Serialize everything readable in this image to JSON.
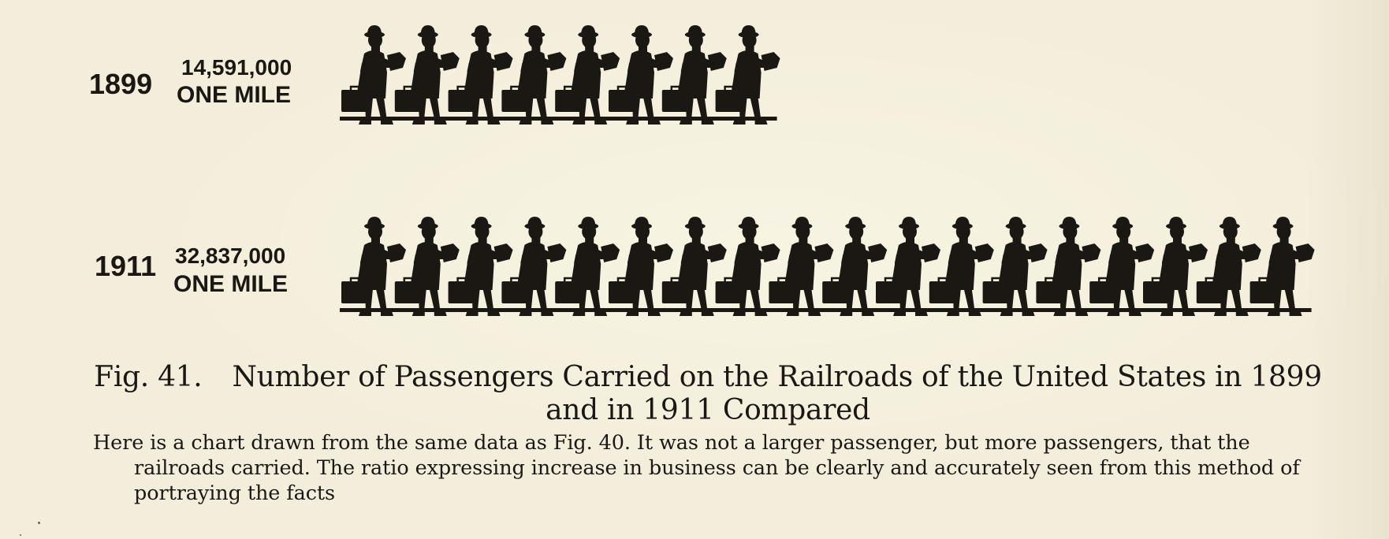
{
  "chart_data": {
    "type": "pictogram",
    "unit_label": "ONE MILE",
    "icon": "walking-man-with-suitcase-icon",
    "categories": [
      "1899",
      "1911"
    ],
    "rows": [
      {
        "year": "1899",
        "value_text": "14,591,000",
        "value": 14591000,
        "unit": "ONE MILE",
        "icons": 8
      },
      {
        "year": "1911",
        "value_text": "32,837,000",
        "value": 32837000,
        "unit": "ONE MILE",
        "icons": 18
      }
    ]
  },
  "caption": {
    "fig_label": "Fig. 41.",
    "title": "Number of Passengers Carried on the Railroads of the United States in 1899 and in 1911 Compared",
    "description": "Here is a chart drawn from the same data as Fig. 40.   It was not a larger passenger, but more passengers, that the railroads carried.   The ratio expressing increase in business can be clearly and accurately seen from this method of portraying the facts"
  },
  "colors": {
    "paper": "#f3eedb",
    "ink": "#1b1814"
  }
}
